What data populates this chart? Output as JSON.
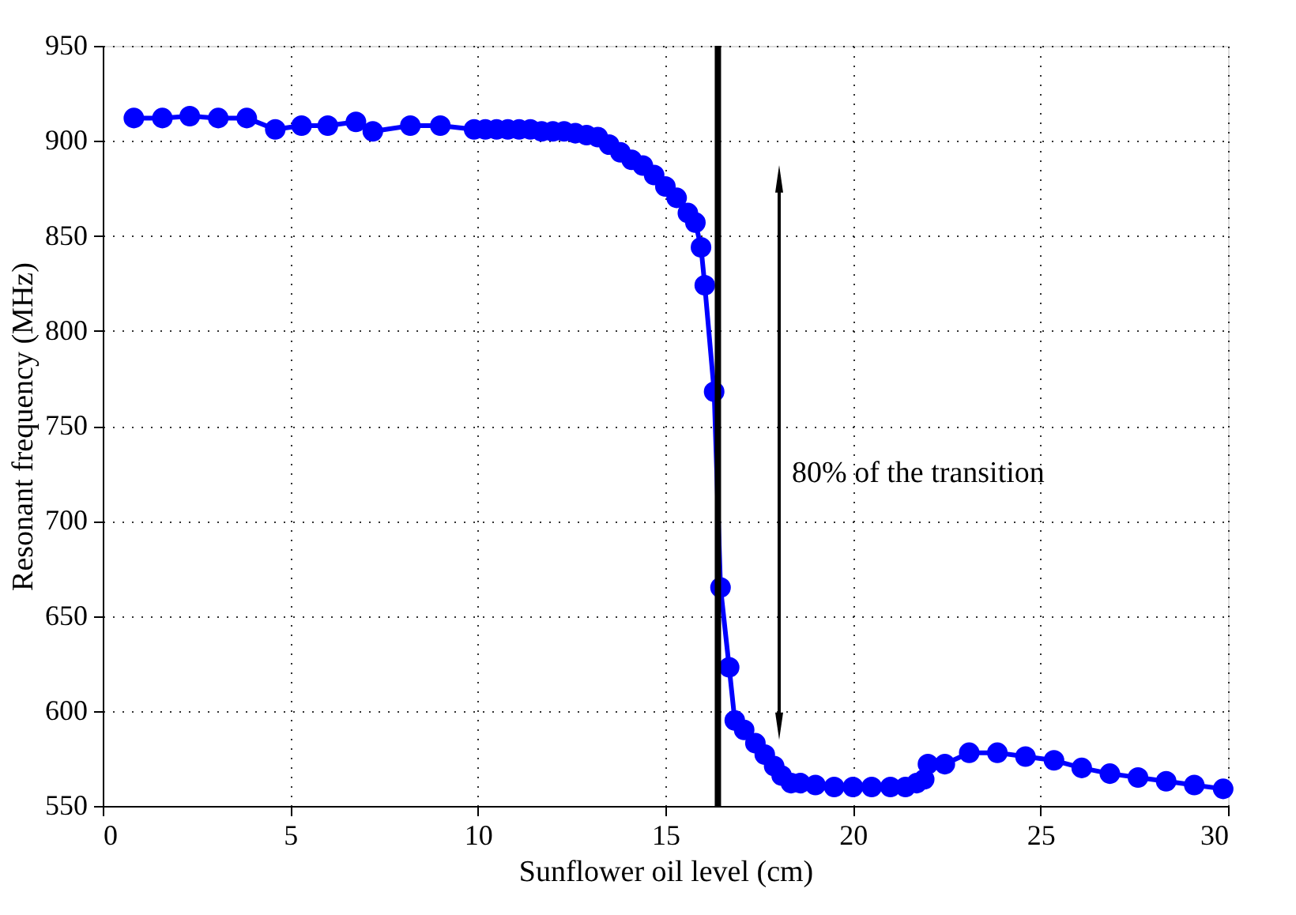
{
  "chart_data": {
    "type": "line",
    "xlabel": "Sunflower oil level (cm)",
    "ylabel": "Resonant frequency (MHz)",
    "xlim": [
      0,
      30
    ],
    "xticks": [
      0,
      5,
      10,
      15,
      20,
      25,
      30
    ],
    "ylim": [
      550,
      950
    ],
    "yticks": [
      550,
      600,
      650,
      700,
      750,
      800,
      850,
      900,
      950
    ],
    "grid": true,
    "marker": "circle",
    "line_style": "solid",
    "annotations": [
      "80% of the transition"
    ],
    "ref_lines": [
      {
        "axis": "x",
        "value": 16.4,
        "color": "#000000",
        "line_style": "solid"
      }
    ],
    "series": [
      {
        "color": "#0000ff",
        "x": [
          0.83,
          1.59,
          2.32,
          3.08,
          3.84,
          4.6,
          5.3,
          6.0,
          6.75,
          7.2,
          8.2,
          9.0,
          9.9,
          10.2,
          10.5,
          10.8,
          11.1,
          11.4,
          11.7,
          12.0,
          12.3,
          12.6,
          12.9,
          13.2,
          13.5,
          13.8,
          14.1,
          14.4,
          14.7,
          15.0,
          15.3,
          15.6,
          15.8,
          15.95,
          16.05,
          16.3,
          16.47,
          16.7,
          16.85,
          17.1,
          17.4,
          17.65,
          17.9,
          18.1,
          18.35,
          18.6,
          19.0,
          19.5,
          20.0,
          20.5,
          21.0,
          21.4,
          21.7,
          21.9,
          22.0,
          22.45,
          23.1,
          23.85,
          24.6,
          25.36,
          26.1,
          26.85,
          27.6,
          28.35,
          29.1,
          29.87
        ],
        "values": [
          912,
          912,
          913,
          912,
          912,
          906,
          908,
          908,
          910,
          905,
          908,
          908,
          906,
          906,
          906,
          906,
          906,
          906,
          905,
          905,
          905,
          904,
          903,
          902,
          898,
          894,
          890,
          887,
          882,
          876,
          870,
          862,
          857,
          844,
          824,
          768,
          665,
          623,
          595,
          590,
          583,
          577,
          571,
          566,
          562,
          562,
          561,
          560,
          560,
          560,
          560,
          560,
          562,
          564,
          572,
          572,
          578,
          578,
          576,
          574,
          570,
          567,
          565,
          563,
          561,
          559
        ]
      }
    ]
  }
}
